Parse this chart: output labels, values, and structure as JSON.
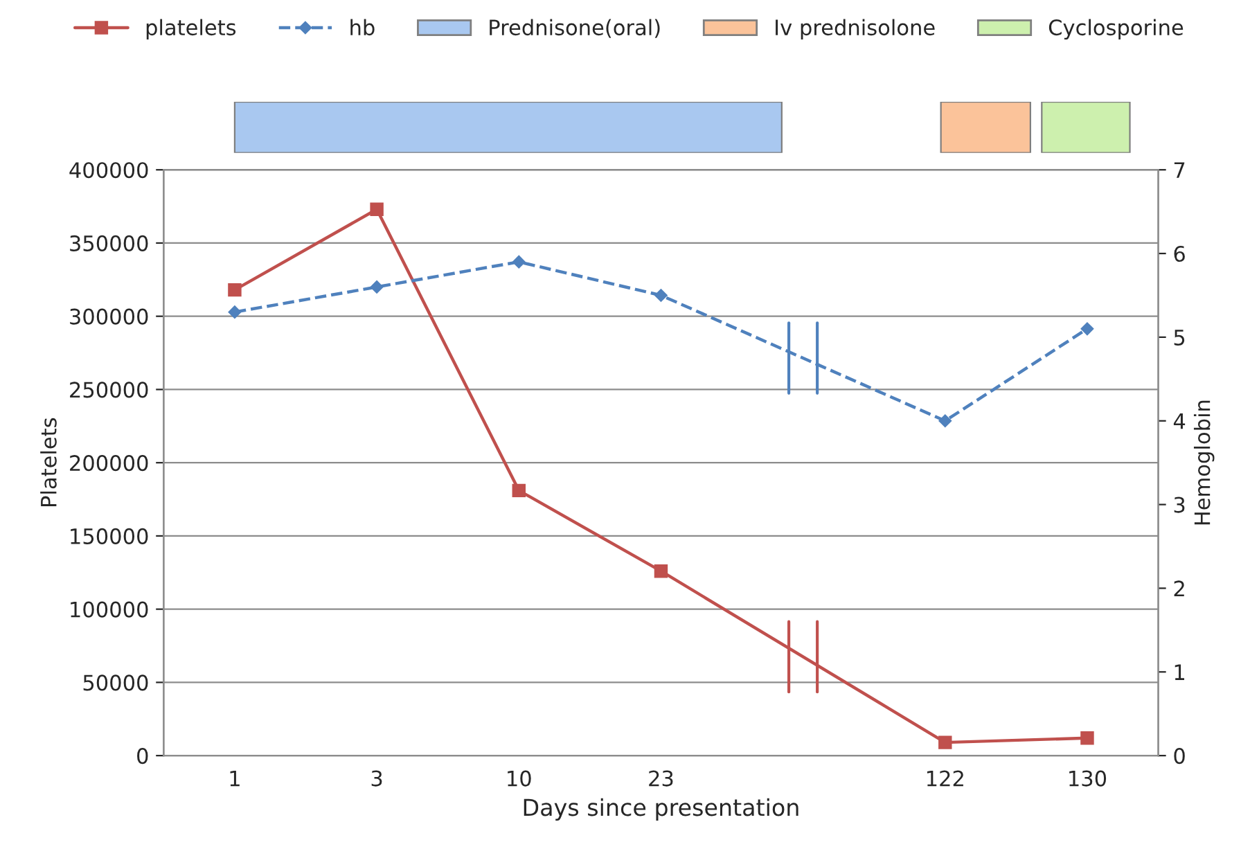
{
  "chart_data": {
    "type": "line",
    "xlabel": "Days since presentation",
    "ylabel": "Platelets",
    "y2label": "Hemoglobin",
    "categories": [
      "1",
      "3",
      "10",
      "23",
      null,
      "122",
      "130"
    ],
    "series": [
      {
        "name": "platelets",
        "color": "#c0504d",
        "marker": "square",
        "line_style": "solid",
        "values": [
          318000,
          373000,
          181000,
          126000,
          null,
          9000,
          12000
        ]
      },
      {
        "name": "hb",
        "color": "#4f81bd",
        "marker": "diamond",
        "line_style": "dashed",
        "axis": "y2",
        "values": [
          5.3,
          5.6,
          5.9,
          5.5,
          null,
          4.0,
          5.1
        ]
      }
    ],
    "annotations": [
      "Prednisone(oral)",
      "Iv prednisolone",
      "Cyclosporine"
    ],
    "ylim": [
      0,
      400000
    ],
    "yticks": [
      0,
      50000,
      100000,
      150000,
      200000,
      250000,
      300000,
      350000,
      400000
    ],
    "y2lim": [
      0,
      7
    ],
    "y2ticks": [
      0,
      1,
      2,
      3,
      4,
      5,
      6,
      7
    ],
    "grid": "y",
    "legend": "top"
  }
}
